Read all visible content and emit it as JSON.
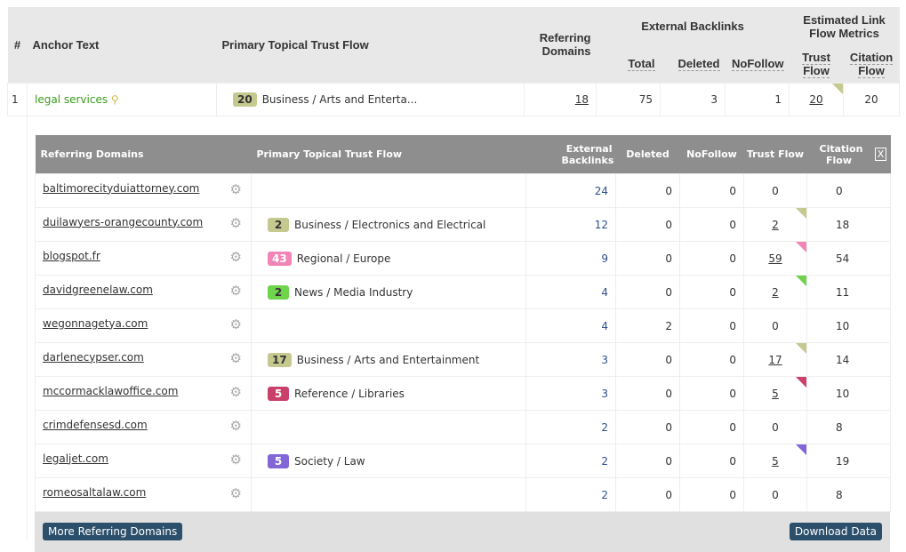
{
  "outer": {
    "headers": {
      "num": "#",
      "anchor": "Anchor Text",
      "topical": "Primary Topical Trust Flow",
      "refdomains": "Referring Domains",
      "ext": "External Backlinks",
      "total": "Total",
      "deleted": "Deleted",
      "nofollow": "NoFollow",
      "est": "Estimated Link Flow Metrics",
      "tf": "Trust Flow",
      "cf": "Citation Flow"
    },
    "row": {
      "num": "1",
      "anchor": "legal services",
      "tf_badge": "20",
      "topic": "Business / Arts and Enterta...",
      "refdomains": "18",
      "total": "75",
      "deleted": "3",
      "nofollow": "1",
      "tf": "20",
      "cf": "20",
      "color": "#c5c98f"
    }
  },
  "inner": {
    "headers": {
      "domain": "Referring Domains",
      "topical": "Primary Topical Trust Flow",
      "ext": "External Backlinks",
      "deleted": "Deleted",
      "nofollow": "NoFollow",
      "tf": "Trust Flow",
      "cf": "Citation Flow",
      "close": "X"
    },
    "rows": [
      {
        "domain": "baltimorecityduiattorney.com",
        "badge": "",
        "topic": "",
        "color": "",
        "ext": "24",
        "deleted": "0",
        "nofollow": "0",
        "tf": "0",
        "cf": "0"
      },
      {
        "domain": "duilawyers-orangecounty.com",
        "badge": "2",
        "topic": "Business / Electronics and Electrical",
        "color": "#c5c98f",
        "ext": "12",
        "deleted": "0",
        "nofollow": "0",
        "tf": "2",
        "cf": "18"
      },
      {
        "domain": "blogspot.fr",
        "badge": "43",
        "topic": "Regional / Europe",
        "color": "#f284b8",
        "ext": "9",
        "deleted": "0",
        "nofollow": "0",
        "tf": "59",
        "cf": "54"
      },
      {
        "domain": "davidgreenelaw.com",
        "badge": "2",
        "topic": "News / Media Industry",
        "color": "#6fd34b",
        "ext": "4",
        "deleted": "0",
        "nofollow": "0",
        "tf": "2",
        "cf": "11"
      },
      {
        "domain": "wegonnagetya.com",
        "badge": "",
        "topic": "",
        "color": "",
        "ext": "4",
        "deleted": "2",
        "nofollow": "0",
        "tf": "0",
        "cf": "10"
      },
      {
        "domain": "darlenecypser.com",
        "badge": "17",
        "topic": "Business / Arts and Entertainment",
        "color": "#c5c98f",
        "ext": "3",
        "deleted": "0",
        "nofollow": "0",
        "tf": "17",
        "cf": "14"
      },
      {
        "domain": "mccormacklawoffice.com",
        "badge": "5",
        "topic": "Reference / Libraries",
        "color": "#c9406a",
        "ext": "3",
        "deleted": "0",
        "nofollow": "0",
        "tf": "5",
        "cf": "10"
      },
      {
        "domain": "crimdefensesd.com",
        "badge": "",
        "topic": "",
        "color": "",
        "ext": "2",
        "deleted": "0",
        "nofollow": "0",
        "tf": "0",
        "cf": "8"
      },
      {
        "domain": "legaljet.com",
        "badge": "5",
        "topic": "Society / Law",
        "color": "#8266d6",
        "ext": "2",
        "deleted": "0",
        "nofollow": "0",
        "tf": "5",
        "cf": "19"
      },
      {
        "domain": "romeosaltalaw.com",
        "badge": "",
        "topic": "",
        "color": "",
        "ext": "2",
        "deleted": "0",
        "nofollow": "0",
        "tf": "0",
        "cf": "8"
      }
    ],
    "more_button": "More Referring Domains",
    "download_button": "Download Data"
  }
}
